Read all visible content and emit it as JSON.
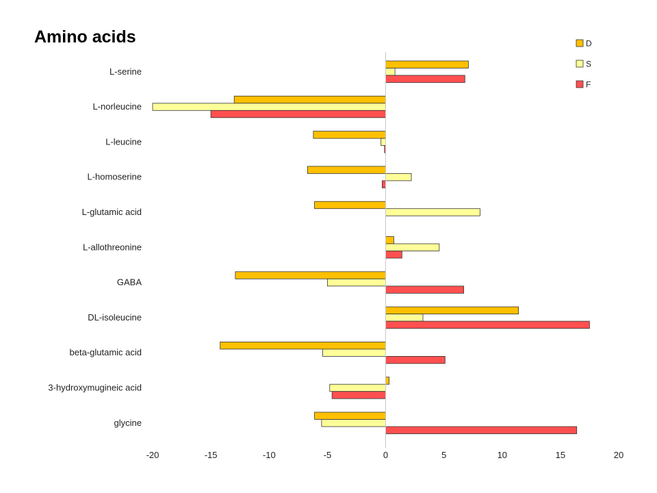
{
  "chart_data": {
    "type": "bar",
    "orientation": "horizontal",
    "title": "Amino acids",
    "categories": [
      "L-serine",
      "L-norleucine",
      "L-leucine",
      "L-homoserine",
      "L-glutamic acid",
      "L-allothreonine",
      "GABA",
      "DL-isoleucine",
      "beta-glutamic acid",
      "3-hydroxymugineic acid",
      "glycine"
    ],
    "series": [
      {
        "name": "D",
        "color": "#FFC000",
        "values": [
          7.1,
          -13.0,
          -6.2,
          -6.7,
          -6.1,
          0.7,
          -12.9,
          11.4,
          -14.2,
          0.3,
          -6.1
        ]
      },
      {
        "name": "S",
        "color": "#FFFF99",
        "values": [
          0.8,
          -20.0,
          -0.4,
          2.2,
          8.1,
          4.6,
          -5.0,
          3.2,
          -5.4,
          -4.8,
          -5.5
        ]
      },
      {
        "name": "F",
        "color": "#FF5050",
        "values": [
          6.8,
          -15.0,
          -0.1,
          -0.3,
          0,
          1.4,
          6.7,
          17.5,
          5.1,
          -4.6,
          16.4
        ]
      }
    ],
    "xlim": [
      -20,
      20
    ],
    "xticks": [
      "-20",
      "-15",
      "-10",
      "-5",
      "0",
      "5",
      "10",
      "15",
      "20"
    ],
    "legend_position": "top-right",
    "grid": false
  }
}
